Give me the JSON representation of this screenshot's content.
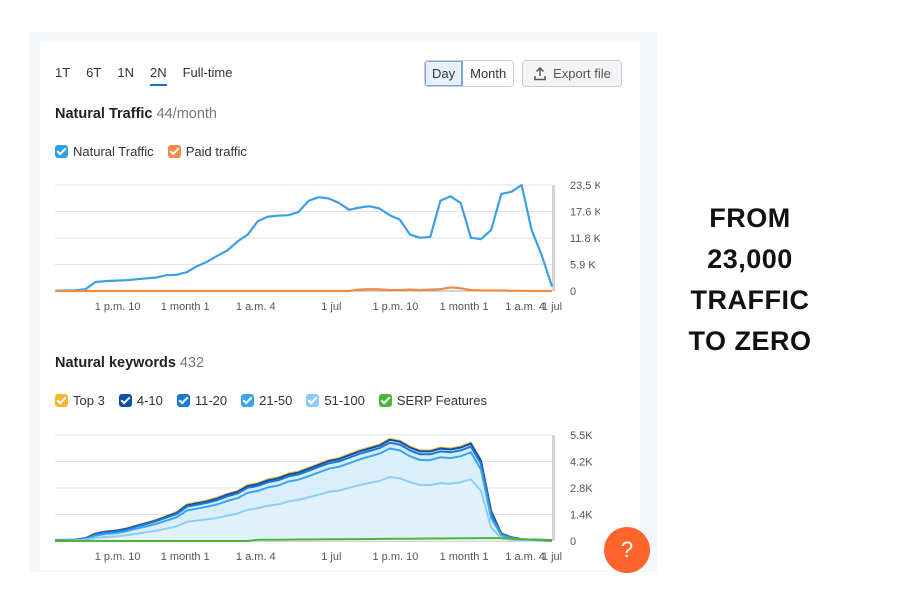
{
  "tabs": [
    "1T",
    "6T",
    "1N",
    "2N",
    "Full-time"
  ],
  "active_tab": "2N",
  "view_toggle": {
    "day": "Day",
    "month": "Month"
  },
  "export_label": "Export file",
  "traffic": {
    "title": "Natural Traffic",
    "subtitle": "44/month",
    "legend": [
      "Natural Traffic",
      "Paid traffic"
    ],
    "legend_colors": [
      "#2d9ee8",
      "#f08a45"
    ]
  },
  "keywords": {
    "title": "Natural keywords",
    "subtitle": "432",
    "legend": [
      "Top 3",
      "4-10",
      "11-20",
      "21-50",
      "51-100",
      "SERP Features"
    ],
    "legend_colors": [
      "#f3b72e",
      "#0d4fa8",
      "#1a79d6",
      "#3ba4ee",
      "#8ecdf6",
      "#4bb53a"
    ]
  },
  "help_label": "?",
  "side_text": [
    "FROM",
    "23,000",
    "TRAFFIC",
    "TO ZERO"
  ],
  "chart_data": [
    {
      "type": "line",
      "title": "Natural Traffic",
      "x_tick_labels": [
        "1 p.m. 10",
        "1 month 1",
        "1 a.m. 4",
        "1 jul",
        "1 p.m. 10",
        "1 month 1",
        "1 a.m. 4",
        "1 jul"
      ],
      "y_tick_labels": [
        "23,5 K",
        "17.6 K",
        "11.8 K",
        "5.9 K",
        "0"
      ],
      "ylim": [
        0,
        23500
      ],
      "n_points": 50,
      "series": [
        {
          "name": "Natural Traffic",
          "color": "#3aa0e6",
          "values": [
            50,
            100,
            150,
            400,
            2000,
            2200,
            2300,
            2400,
            2600,
            2800,
            3000,
            3500,
            3600,
            4200,
            5500,
            6500,
            7800,
            9000,
            11000,
            12500,
            15500,
            16500,
            16700,
            16800,
            17500,
            20000,
            20800,
            20500,
            19500,
            18000,
            18500,
            18800,
            18300,
            16800,
            15800,
            12500,
            11800,
            12000,
            20000,
            21000,
            19500,
            11800,
            11500,
            13500,
            21500,
            22000,
            23500,
            13500,
            7800,
            1000
          ]
        },
        {
          "name": "Paid traffic",
          "color": "#f08a45",
          "values": [
            0,
            0,
            0,
            0,
            0,
            0,
            0,
            0,
            0,
            0,
            0,
            0,
            0,
            0,
            0,
            0,
            0,
            0,
            0,
            0,
            0,
            0,
            0,
            0,
            0,
            0,
            0,
            0,
            0,
            0,
            300,
            400,
            350,
            200,
            200,
            300,
            200,
            300,
            400,
            800,
            600,
            200,
            100,
            100,
            100,
            50,
            50,
            0,
            0,
            0
          ]
        }
      ]
    },
    {
      "type": "area",
      "title": "Natural keywords",
      "x_tick_labels": [
        "1 p.m. 10",
        "1 month 1",
        "1 a.m. 4",
        "1 jul",
        "1 p.m. 10",
        "1 month 1",
        "1 a.m. 4",
        "1 jul"
      ],
      "y_tick_labels": [
        "5.5K",
        "4.2K",
        "2.8K",
        "1.4K",
        "0"
      ],
      "ylim": [
        0,
        5500
      ],
      "n_points": 50,
      "series": [
        {
          "name": "Top 3",
          "color": "#f3b72e",
          "values": [
            50,
            60,
            80,
            150,
            400,
            500,
            550,
            650,
            800,
            950,
            1100,
            1300,
            1500,
            1900,
            2000,
            2100,
            2250,
            2450,
            2600,
            2900,
            3000,
            3200,
            3300,
            3500,
            3600,
            3800,
            4000,
            4200,
            4300,
            4500,
            4700,
            4850,
            5000,
            5300,
            5200,
            4900,
            4700,
            4700,
            4850,
            4800,
            4900,
            5100,
            4200,
            1600,
            400,
            200,
            100,
            80,
            60,
            50
          ]
        },
        {
          "name": "4-10",
          "color": "#0d4fa8",
          "values": [
            40,
            50,
            70,
            140,
            380,
            480,
            530,
            630,
            780,
            920,
            1070,
            1270,
            1460,
            1850,
            1950,
            2050,
            2200,
            2400,
            2550,
            2850,
            2950,
            3150,
            3250,
            3450,
            3550,
            3750,
            3950,
            4150,
            4250,
            4450,
            4650,
            4800,
            4950,
            5250,
            5150,
            4850,
            4650,
            4650,
            4800,
            4750,
            4850,
            5050,
            4150,
            1550,
            380,
            190,
            95,
            75,
            55,
            45
          ]
        },
        {
          "name": "11-20",
          "color": "#1a79d6",
          "values": [
            30,
            40,
            60,
            120,
            340,
            440,
            490,
            590,
            740,
            880,
            1030,
            1220,
            1400,
            1780,
            1880,
            1980,
            2120,
            2320,
            2470,
            2760,
            2860,
            3050,
            3150,
            3350,
            3450,
            3640,
            3840,
            4030,
            4130,
            4320,
            4520,
            4670,
            4820,
            5100,
            5000,
            4700,
            4500,
            4500,
            4650,
            4600,
            4700,
            4900,
            4000,
            1400,
            350,
            170,
            85,
            65,
            45,
            35
          ]
        },
        {
          "name": "21-50",
          "color": "#3ba4ee",
          "values": [
            20,
            30,
            45,
            90,
            280,
            370,
            410,
            500,
            640,
            760,
            890,
            1060,
            1230,
            1580,
            1680,
            1780,
            1900,
            2080,
            2220,
            2500,
            2600,
            2780,
            2880,
            3080,
            3180,
            3360,
            3560,
            3750,
            3850,
            4030,
            4230,
            4380,
            4530,
            4800,
            4700,
            4400,
            4200,
            4200,
            4350,
            4300,
            4400,
            4600,
            3700,
            1200,
            300,
            140,
            70,
            55,
            35,
            25
          ]
        },
        {
          "name": "51-100",
          "color": "#8ecdf6",
          "values": [
            10,
            15,
            25,
            60,
            160,
            210,
            240,
            290,
            380,
            450,
            530,
            640,
            760,
            1000,
            1060,
            1120,
            1200,
            1320,
            1420,
            1620,
            1700,
            1830,
            1900,
            2050,
            2130,
            2260,
            2400,
            2550,
            2620,
            2760,
            2900,
            3010,
            3120,
            3320,
            3250,
            3050,
            2900,
            2900,
            3000,
            2970,
            3050,
            3200,
            2600,
            700,
            150,
            70,
            35,
            25,
            15,
            10
          ]
        },
        {
          "name": "SERP Features",
          "color": "#4bb53a",
          "values": [
            0,
            0,
            0,
            0,
            0,
            0,
            0,
            0,
            0,
            0,
            0,
            0,
            0,
            0,
            0,
            0,
            0,
            0,
            0,
            0,
            0,
            0,
            0,
            0,
            0,
            0,
            0,
            0,
            0,
            0,
            0,
            0,
            0,
            0,
            0,
            0,
            0,
            0,
            0,
            0,
            0,
            0,
            0,
            0,
            0,
            0,
            0,
            0,
            0,
            0
          ]
        }
      ]
    }
  ]
}
